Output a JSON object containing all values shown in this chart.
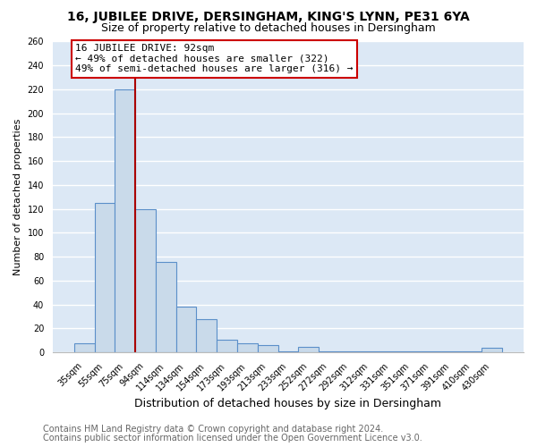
{
  "title": "16, JUBILEE DRIVE, DERSINGHAM, KING'S LYNN, PE31 6YA",
  "subtitle": "Size of property relative to detached houses in Dersingham",
  "xlabel": "Distribution of detached houses by size in Dersingham",
  "ylabel": "Number of detached properties",
  "bin_labels": [
    "35sqm",
    "55sqm",
    "75sqm",
    "94sqm",
    "114sqm",
    "134sqm",
    "154sqm",
    "173sqm",
    "193sqm",
    "213sqm",
    "233sqm",
    "252sqm",
    "272sqm",
    "292sqm",
    "312sqm",
    "331sqm",
    "351sqm",
    "371sqm",
    "391sqm",
    "410sqm",
    "430sqm"
  ],
  "bar_heights": [
    8,
    125,
    220,
    120,
    76,
    38,
    28,
    11,
    8,
    6,
    1,
    5,
    1,
    1,
    1,
    1,
    1,
    1,
    1,
    1,
    4
  ],
  "bar_color": "#c9daea",
  "bar_edge_color": "#5b8fc9",
  "vline_color": "#aa0000",
  "annotation_line1": "16 JUBILEE DRIVE: 92sqm",
  "annotation_line2": "← 49% of detached houses are smaller (322)",
  "annotation_line3": "49% of semi-detached houses are larger (316) →",
  "annotation_box_edge": "#cc0000",
  "ylim": [
    0,
    260
  ],
  "yticks": [
    0,
    20,
    40,
    60,
    80,
    100,
    120,
    140,
    160,
    180,
    200,
    220,
    240,
    260
  ],
  "footer_line1": "Contains HM Land Registry data © Crown copyright and database right 2024.",
  "footer_line2": "Contains public sector information licensed under the Open Government Licence v3.0.",
  "bg_color": "#ffffff",
  "plot_bg_color": "#dce8f5",
  "grid_color": "#ffffff",
  "title_fontsize": 10,
  "subtitle_fontsize": 9,
  "xlabel_fontsize": 9,
  "ylabel_fontsize": 8,
  "tick_fontsize": 7,
  "annotation_fontsize": 8,
  "footer_fontsize": 7
}
